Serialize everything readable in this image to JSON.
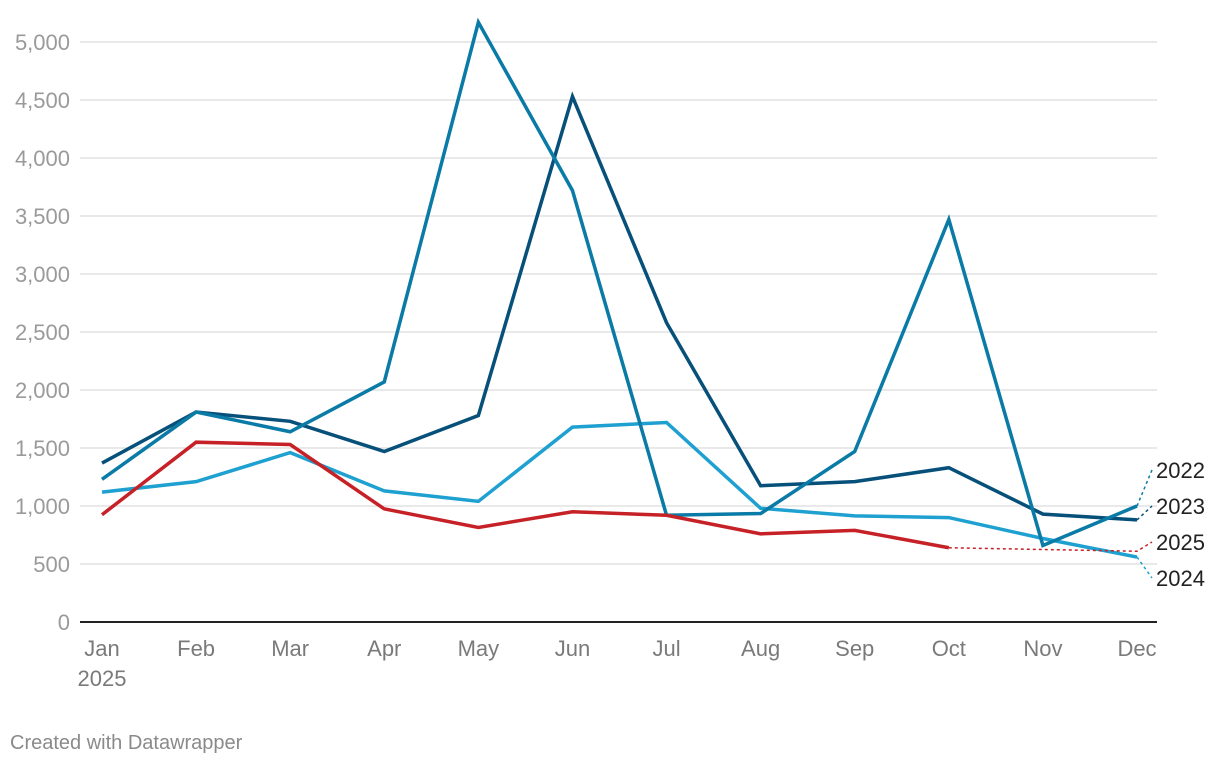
{
  "chart_data": {
    "type": "line",
    "title": "",
    "xlabel": "",
    "ylabel": "",
    "ylim": [
      0,
      5000
    ],
    "yticks": [
      0,
      500,
      1000,
      1500,
      2000,
      2500,
      3000,
      3500,
      4000,
      4500,
      5000
    ],
    "ytick_labels": [
      "0",
      "500",
      "1,000",
      "1,500",
      "2,000",
      "2,500",
      "3,000",
      "3,500",
      "4,000",
      "4,500",
      "5,000"
    ],
    "categories": [
      "Jan",
      "Feb",
      "Mar",
      "Apr",
      "May",
      "Jun",
      "Jul",
      "Aug",
      "Sep",
      "Oct",
      "Nov",
      "Dec"
    ],
    "year_label": "2025",
    "grid": true,
    "series": [
      {
        "name": "2022",
        "color": "#0a7aa6",
        "values": [
          1230,
          1810,
          1640,
          2070,
          5170,
          3720,
          920,
          935,
          1470,
          3470,
          660,
          1000
        ]
      },
      {
        "name": "2023",
        "color": "#06507a",
        "values": [
          1370,
          1810,
          1730,
          1470,
          1780,
          4530,
          2580,
          1175,
          1210,
          1330,
          930,
          880
        ]
      },
      {
        "name": "2024",
        "color": "#1ea0d0",
        "values": [
          1120,
          1210,
          1460,
          1130,
          1040,
          1680,
          1720,
          980,
          915,
          900,
          720,
          560
        ]
      },
      {
        "name": "2025",
        "color": "#c62127",
        "values": [
          925,
          1550,
          1530,
          975,
          815,
          950,
          920,
          760,
          790,
          640,
          null,
          null
        ],
        "projection_to": 610
      }
    ]
  },
  "credit": "Created with Datawrapper"
}
